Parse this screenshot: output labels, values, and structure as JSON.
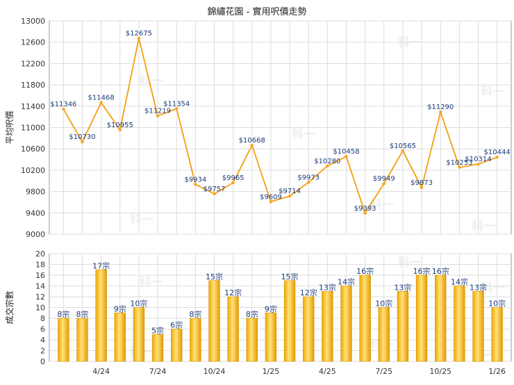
{
  "title": "錦繡花園 - 實用呎價走勢",
  "watermark": "科一",
  "chart_data": [
    {
      "type": "line",
      "ylabel": "平均呎價",
      "ylim": [
        9000,
        13000
      ],
      "yticks": [
        9000,
        9400,
        9800,
        10200,
        10600,
        11000,
        11400,
        11800,
        12200,
        12600,
        13000
      ],
      "grid": true,
      "color": "#f5a623",
      "values": [
        11346,
        10730,
        11468,
        10955,
        12675,
        11219,
        11354,
        9934,
        9757,
        9965,
        10668,
        9609,
        9714,
        9973,
        10280,
        10458,
        9393,
        9949,
        10565,
        9873,
        11290,
        10253,
        10314,
        10444
      ],
      "labels": [
        "$11346",
        "$10730",
        "$11468",
        "$10955",
        "$12675",
        "$11219",
        "$11354",
        "$9934",
        "$9757",
        "$9965",
        "$10668",
        "$9609",
        "$9714",
        "$9973",
        "$10280",
        "$10458",
        "$9393",
        "$9949",
        "$10565",
        "$9873",
        "$11290",
        "$10253",
        "$10314",
        "$10444"
      ]
    },
    {
      "type": "bar",
      "ylabel": "成交宗數",
      "ylim": [
        0,
        20
      ],
      "yticks": [
        0,
        2,
        4,
        6,
        8,
        10,
        12,
        14,
        16,
        18,
        20
      ],
      "grid": true,
      "color": "#f5b400",
      "values": [
        8,
        8,
        17,
        9,
        10,
        5,
        6,
        8,
        15,
        12,
        8,
        9,
        15,
        12,
        13,
        14,
        16,
        10,
        13,
        16,
        16,
        14,
        13,
        10
      ],
      "labels": [
        "8宗",
        "8宗",
        "17宗",
        "9宗",
        "10宗",
        "5宗",
        "6宗",
        "8宗",
        "15宗",
        "12宗",
        "8宗",
        "9宗",
        "15宗",
        "12宗",
        "13宗",
        "14宗",
        "16宗",
        "10宗",
        "13宗",
        "16宗",
        "16宗",
        "14宗",
        "13宗",
        "10宗"
      ],
      "x_ticks": [
        {
          "label": "4/24",
          "index": 2.5
        },
        {
          "label": "7/24",
          "index": 5.5
        },
        {
          "label": "10/24",
          "index": 8.5
        },
        {
          "label": "1/25",
          "index": 11.5
        },
        {
          "label": "4/25",
          "index": 14.5
        },
        {
          "label": "7/25",
          "index": 17.5
        },
        {
          "label": "10/25",
          "index": 20.5
        },
        {
          "label": "1/26",
          "index": 23.5
        }
      ]
    }
  ]
}
